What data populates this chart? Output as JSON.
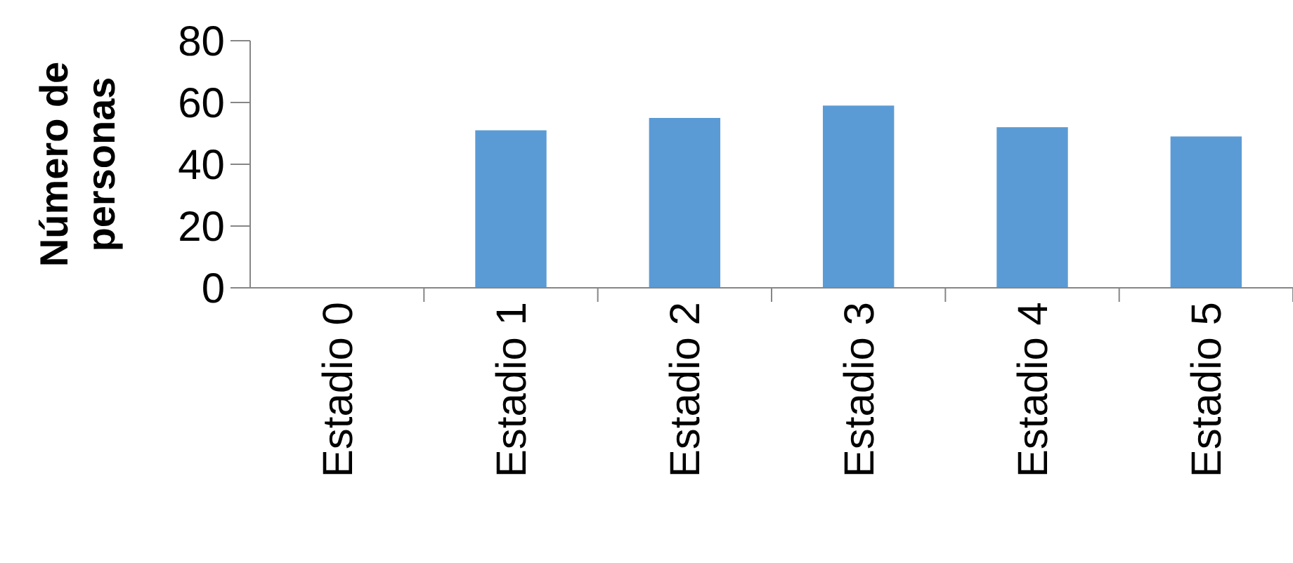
{
  "chart_data": {
    "type": "bar",
    "ylabel": "Número de personas",
    "categories": [
      "Estadio 0",
      "Estadio 1",
      "Estadio 2",
      "Estadio 3",
      "Estadio 4",
      "Estadio 5"
    ],
    "values": [
      0,
      51,
      55,
      59,
      52,
      49
    ],
    "color": "#5b9bd5",
    "ylim": [
      0,
      80
    ],
    "yticks": [
      0,
      20,
      40,
      60,
      80
    ],
    "grid": false
  }
}
